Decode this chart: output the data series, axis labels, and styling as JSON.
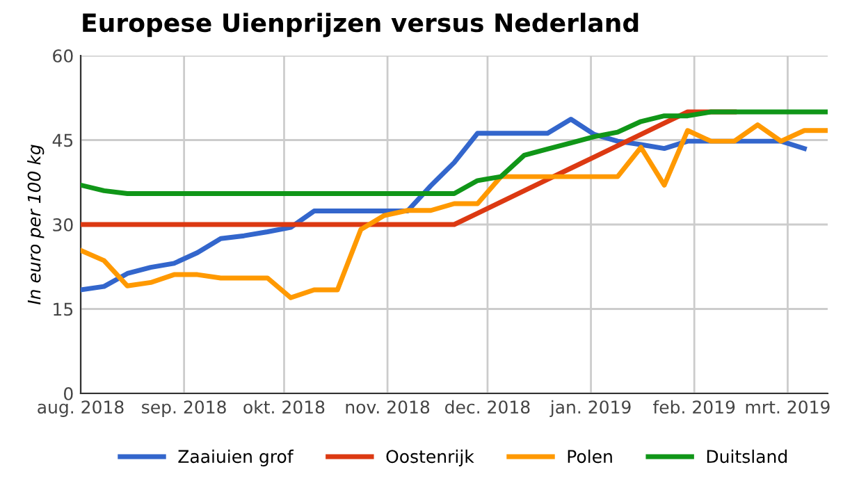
{
  "chart_data": {
    "type": "line",
    "title": "Europese Uienprijzen versus Nederland",
    "ylabel": "In euro per 100 kg",
    "x": [
      "2018-08-01",
      "2018-08-08",
      "2018-08-15",
      "2018-08-22",
      "2018-08-29",
      "2018-09-05",
      "2018-09-12",
      "2018-09-19",
      "2018-09-26",
      "2018-10-03",
      "2018-10-10",
      "2018-10-17",
      "2018-10-24",
      "2018-10-31",
      "2018-11-07",
      "2018-11-14",
      "2018-11-21",
      "2018-11-28",
      "2018-12-05",
      "2018-12-12",
      "2018-12-19",
      "2018-12-26",
      "2019-01-02",
      "2019-01-09",
      "2019-01-16",
      "2019-01-23",
      "2019-01-30",
      "2019-02-06",
      "2019-02-13",
      "2019-02-20",
      "2019-02-27",
      "2019-03-06",
      "2019-03-13"
    ],
    "series": [
      {
        "name": "Zaaiuien grof",
        "color": "#3366cc",
        "values": [
          18.4,
          19,
          21.3,
          22.4,
          23.1,
          25,
          27.5,
          28,
          28.7,
          29.5,
          32.4,
          32.4,
          32.4,
          32.4,
          32.4,
          36.9,
          41,
          46.2,
          46.2,
          46.2,
          46.2,
          48.7,
          46,
          44.8,
          44.2,
          43.5,
          44.8,
          44.8,
          44.8,
          44.8,
          44.8,
          43.5,
          null
        ]
      },
      {
        "name": "Oostenrijk",
        "color": "#dc3912",
        "values": [
          30,
          30,
          30,
          30,
          30,
          30,
          30,
          30,
          30,
          30,
          30,
          30,
          30,
          30,
          30,
          30,
          30,
          32,
          34,
          36,
          38,
          40,
          42,
          44,
          46,
          48,
          50,
          50,
          50,
          null,
          null,
          null,
          null
        ]
      },
      {
        "name": "Polen",
        "color": "#ff9900",
        "values": [
          25.4,
          23.6,
          19.1,
          19.7,
          21.1,
          21.1,
          20.5,
          20.5,
          20.5,
          17,
          18.4,
          18.4,
          29.1,
          31.6,
          32.5,
          32.5,
          33.7,
          33.7,
          38.5,
          38.5,
          38.5,
          38.5,
          38.5,
          38.5,
          43.7,
          37,
          46.7,
          44.8,
          44.8,
          47.7,
          44.8,
          46.7,
          46.7
        ]
      },
      {
        "name": "Duitsland",
        "color": "#109618",
        "values": [
          37,
          36,
          35.5,
          35.5,
          35.5,
          35.5,
          35.5,
          35.5,
          35.5,
          35.5,
          35.5,
          35.5,
          35.5,
          35.5,
          35.5,
          35.5,
          35.5,
          37.8,
          38.5,
          42.3,
          43.4,
          44.5,
          45.6,
          46.4,
          48.3,
          49.3,
          49.3,
          50,
          50,
          50,
          50,
          50,
          50
        ]
      }
    ],
    "xlim": [
      "2018-08-01",
      "2019-03-13"
    ],
    "xticks": [
      {
        "value": "2018-08-01",
        "label": "aug. 2018"
      },
      {
        "value": "2018-09-01",
        "label": "sep. 2018"
      },
      {
        "value": "2018-10-01",
        "label": "okt. 2018"
      },
      {
        "value": "2018-11-01",
        "label": "nov. 2018"
      },
      {
        "value": "2018-12-01",
        "label": "dec. 2018"
      },
      {
        "value": "2019-01-01",
        "label": "jan. 2019"
      },
      {
        "value": "2019-02-01",
        "label": "feb. 2019"
      },
      {
        "value": "2019-03-01",
        "label": "mrt. 2019"
      }
    ],
    "ylim": [
      0,
      60
    ],
    "yticks": [
      0,
      15,
      30,
      45,
      60
    ],
    "grid": true,
    "legend": "bottom",
    "marker": "none",
    "line_style": "solid"
  }
}
